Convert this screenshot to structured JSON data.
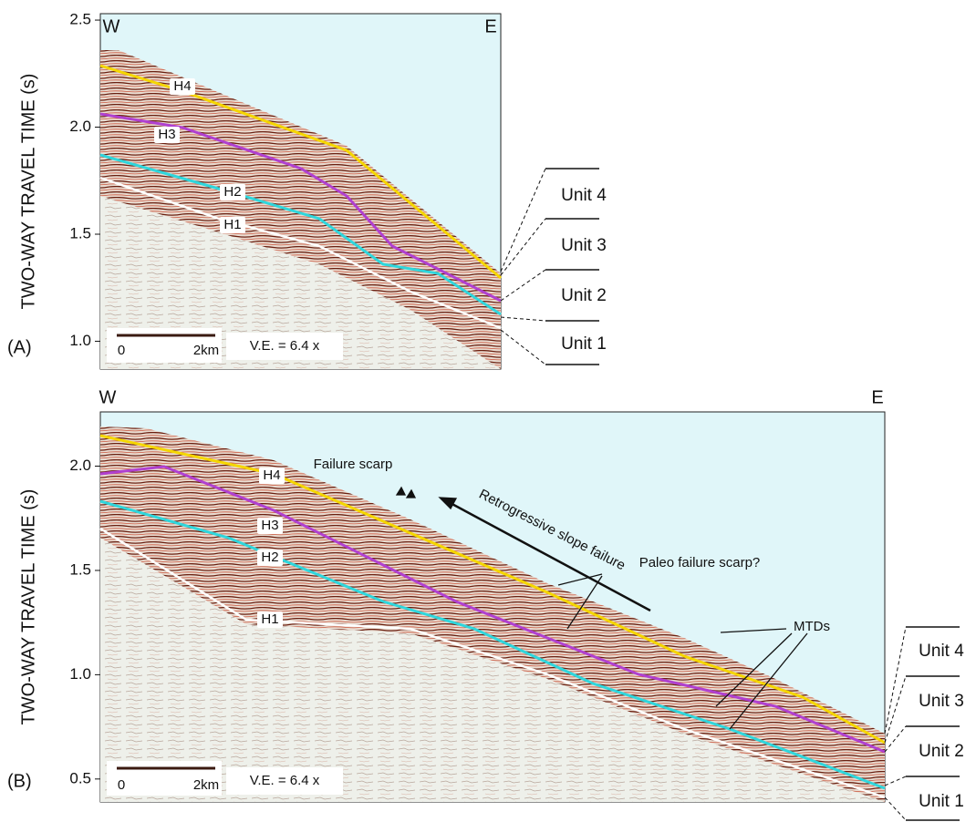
{
  "panels": [
    {
      "label": "(A)",
      "y_axis_label": "TWO-WAY TRAVEL TIME (s)",
      "ylim": [
        0.87,
        2.53
      ],
      "yticks": [
        {
          "value": 1,
          "label": "1.0"
        },
        1.5,
        {
          "value": 2,
          "label": "2.0"
        },
        2.5
      ],
      "west": "W",
      "east": "E",
      "horizons": [
        "H4",
        "H3",
        "H2",
        "H1"
      ],
      "scale_bar": {
        "start": "0",
        "end": "2km"
      },
      "vertical_exaggeration": "V.E. = 6.4 x",
      "units": [
        "Unit 4",
        "Unit 3",
        "Unit 2",
        "Unit 1"
      ],
      "annotations": []
    },
    {
      "label": "(B)",
      "y_axis_label": "TWO-WAY TRAVEL TIME (s)",
      "ylim": [
        0.39,
        2.26
      ],
      "yticks": [
        0.5,
        {
          "value": 1,
          "label": "1.0"
        },
        1.5,
        {
          "value": 2,
          "label": "2.0"
        }
      ],
      "west": "W",
      "east": "E",
      "horizons": [
        "H4",
        "H3",
        "H2",
        "H1"
      ],
      "scale_bar": {
        "start": "0",
        "end": "2km"
      },
      "vertical_exaggeration": "V.E. = 6.4 x",
      "units": [
        "Unit 4",
        "Unit 3",
        "Unit 2",
        "Unit 1"
      ],
      "annotations": [
        "Failure scarp",
        "Retrogressive slope failure",
        "Paleo failure scarp?",
        "MTDs"
      ]
    }
  ]
}
